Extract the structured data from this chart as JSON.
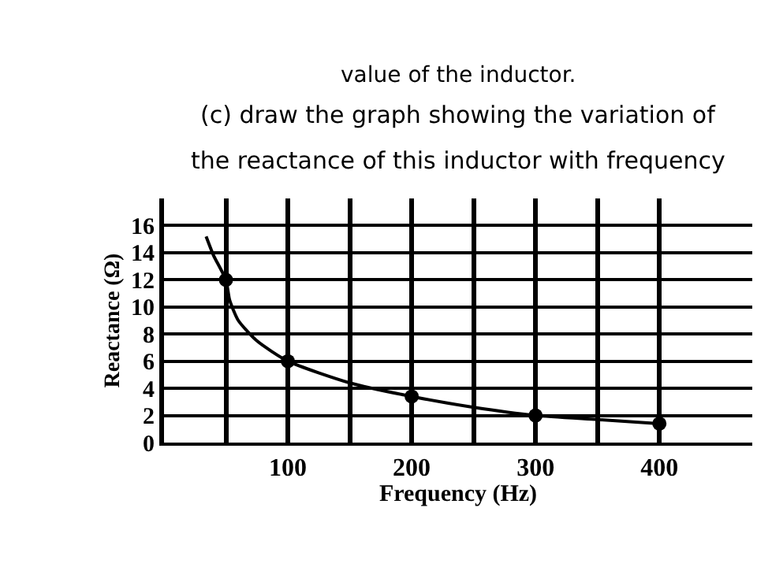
{
  "chart_data": {
    "type": "line",
    "xlabel": "Frequency (Hz)",
    "ylabel": "Reactance (Ω)",
    "annotations": [
      "value of the inductor.",
      "(c) draw the graph showing the variation of",
      "the reactance of this inductor with frequency"
    ],
    "series": [
      {
        "color": "#000000",
        "marker": "none",
        "x": [
          34,
          40,
          50,
          53,
          60,
          75,
          100,
          150,
          200,
          250,
          300,
          350,
          400
        ],
        "values": [
          15.2,
          13.8,
          12,
          10.5,
          9,
          7.5,
          6,
          4.4,
          3.4,
          2.6,
          2,
          1.7,
          1.4
        ]
      },
      {
        "type": "scatter",
        "color": "#000000",
        "marker": "circle",
        "x": [
          50,
          100,
          200,
          300,
          400
        ],
        "values": [
          12,
          6,
          3.4,
          2,
          1.4
        ]
      }
    ],
    "xlim": [
      0,
      475
    ],
    "ylim": [
      0,
      18
    ],
    "xticks": [
      {
        "value": 50,
        "label": null
      },
      100,
      {
        "value": 150,
        "label": null
      },
      200,
      {
        "value": 250,
        "label": null
      },
      300,
      {
        "value": 350,
        "label": null
      },
      400
    ],
    "yticks": [
      0,
      2,
      4,
      6,
      8,
      10,
      12,
      14,
      16
    ],
    "grid": true
  }
}
